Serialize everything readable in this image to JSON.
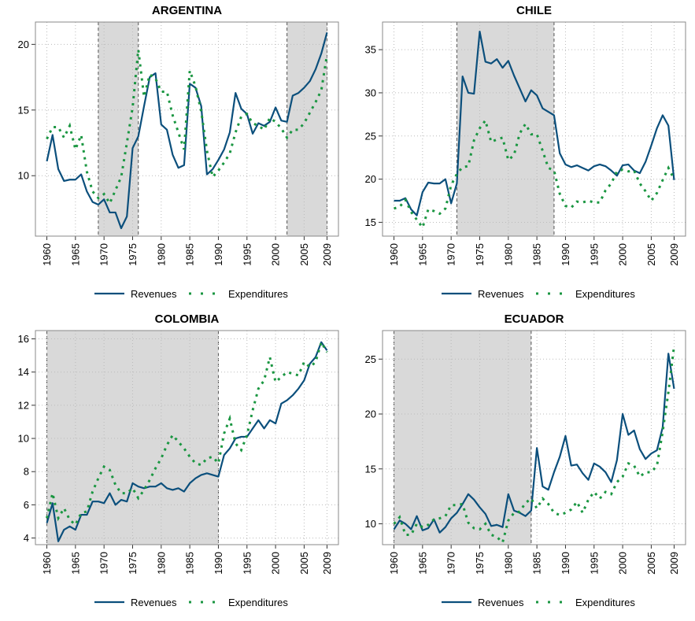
{
  "chart_data": [
    {
      "type": "line",
      "title": "ARGENTINA",
      "x": [
        1960,
        1961,
        1962,
        1963,
        1964,
        1965,
        1966,
        1967,
        1968,
        1969,
        1970,
        1971,
        1972,
        1973,
        1974,
        1975,
        1976,
        1977,
        1978,
        1979,
        1980,
        1981,
        1982,
        1983,
        1984,
        1985,
        1986,
        1987,
        1988,
        1989,
        1990,
        1991,
        1992,
        1993,
        1994,
        1995,
        1996,
        1997,
        1998,
        1999,
        2000,
        2001,
        2002,
        2003,
        2004,
        2005,
        2006,
        2007,
        2008,
        2009
      ],
      "xlim": [
        1958,
        2011
      ],
      "xticks": [
        1960,
        1965,
        1970,
        1975,
        1980,
        1985,
        1990,
        1995,
        2000,
        2005,
        2009
      ],
      "ylim": [
        5.4,
        21.7
      ],
      "yticks": [
        10,
        15,
        20
      ],
      "grid": true,
      "legend": "bottom",
      "shaded": [
        [
          1969,
          1976
        ],
        [
          2002,
          2009
        ]
      ],
      "series": [
        {
          "name": "Revenues",
          "color": "#0b4f7c",
          "style": "solid",
          "values": [
            11.1,
            13.1,
            10.5,
            9.6,
            9.7,
            9.7,
            10.1,
            8.8,
            8.0,
            7.8,
            8.2,
            7.2,
            7.2,
            6.0,
            6.9,
            12.1,
            13.0,
            15.3,
            17.5,
            17.8,
            13.9,
            13.5,
            11.6,
            10.6,
            10.8,
            17.0,
            16.7,
            15.3,
            10.1,
            10.5,
            11.2,
            12.0,
            13.3,
            16.3,
            15.1,
            14.7,
            13.2,
            14.0,
            13.8,
            14.1,
            15.2,
            14.2,
            14.1,
            16.1,
            16.3,
            16.7,
            17.2,
            18.1,
            19.3,
            20.9
          ]
        },
        {
          "name": "Expenditures",
          "color": "#1a9641",
          "style": "dotted",
          "values": [
            12.8,
            13.7,
            13.7,
            12.9,
            13.8,
            12.0,
            13.1,
            10.3,
            8.8,
            8.3,
            8.6,
            7.9,
            8.9,
            9.9,
            12.5,
            15.2,
            19.6,
            16.0,
            17.7,
            17.4,
            16.4,
            16.4,
            14.6,
            13.3,
            12.0,
            18.0,
            16.8,
            14.9,
            11.9,
            9.9,
            10.4,
            11.0,
            11.7,
            13.3,
            14.5,
            14.7,
            14.0,
            13.8,
            13.5,
            14.4,
            14.1,
            13.6,
            12.9,
            13.5,
            13.5,
            14.0,
            14.8,
            15.6,
            16.5,
            19.2
          ]
        }
      ]
    },
    {
      "type": "line",
      "title": "CHILE",
      "x": [
        1960,
        1961,
        1962,
        1963,
        1964,
        1965,
        1966,
        1967,
        1968,
        1969,
        1970,
        1971,
        1972,
        1973,
        1974,
        1975,
        1976,
        1977,
        1978,
        1979,
        1980,
        1981,
        1982,
        1983,
        1984,
        1985,
        1986,
        1987,
        1988,
        1989,
        1990,
        1991,
        1992,
        1993,
        1994,
        1995,
        1996,
        1997,
        1998,
        1999,
        2000,
        2001,
        2002,
        2003,
        2004,
        2005,
        2006,
        2007,
        2008,
        2009
      ],
      "xlim": [
        1958,
        2011
      ],
      "xticks": [
        1960,
        1965,
        1970,
        1975,
        1980,
        1985,
        1990,
        1995,
        2000,
        2005,
        2009
      ],
      "ylim": [
        13.4,
        38.2
      ],
      "yticks": [
        15,
        20,
        25,
        30,
        35
      ],
      "grid": true,
      "legend": "bottom",
      "shaded": [
        [
          1971,
          1988
        ]
      ],
      "series": [
        {
          "name": "Revenues",
          "color": "#0b4f7c",
          "style": "solid",
          "values": [
            17.5,
            17.5,
            17.8,
            16.5,
            15.8,
            18.5,
            19.6,
            19.5,
            19.5,
            20.0,
            17.2,
            19.5,
            31.9,
            30.0,
            29.9,
            37.1,
            33.6,
            33.4,
            33.9,
            32.9,
            33.7,
            32.0,
            30.5,
            29.0,
            30.3,
            29.7,
            28.2,
            27.8,
            27.4,
            23.0,
            21.7,
            21.4,
            21.6,
            21.3,
            21.0,
            21.5,
            21.7,
            21.5,
            21.0,
            20.4,
            21.6,
            21.7,
            21.0,
            20.7,
            22.0,
            23.9,
            25.9,
            27.4,
            26.2,
            19.9
          ]
        },
        {
          "name": "Expenditures",
          "color": "#1a9641",
          "style": "dotted",
          "values": [
            16.6,
            16.8,
            17.6,
            16.2,
            15.3,
            14.4,
            16.5,
            16.3,
            16.0,
            16.6,
            19.3,
            20.6,
            21.4,
            21.5,
            24.5,
            25.9,
            26.8,
            24.3,
            24.6,
            24.8,
            22.2,
            22.8,
            25.3,
            26.4,
            25.2,
            25.2,
            23.3,
            21.3,
            21.0,
            18.3,
            16.9,
            16.7,
            17.4,
            17.3,
            17.5,
            17.3,
            17.3,
            18.7,
            19.5,
            20.9,
            21.1,
            20.9,
            21.0,
            19.5,
            18.6,
            17.5,
            18.4,
            19.9,
            21.3,
            20.0
          ]
        }
      ]
    },
    {
      "type": "line",
      "title": "COLOMBIA",
      "x": [
        1960,
        1961,
        1962,
        1963,
        1964,
        1965,
        1966,
        1967,
        1968,
        1969,
        1970,
        1971,
        1972,
        1973,
        1974,
        1975,
        1976,
        1977,
        1978,
        1979,
        1980,
        1981,
        1982,
        1983,
        1984,
        1985,
        1986,
        1987,
        1988,
        1989,
        1990,
        1991,
        1992,
        1993,
        1994,
        1995,
        1996,
        1997,
        1998,
        1999,
        2000,
        2001,
        2002,
        2003,
        2004,
        2005,
        2006,
        2007,
        2008,
        2009
      ],
      "xlim": [
        1958,
        2011
      ],
      "xticks": [
        1960,
        1965,
        1970,
        1975,
        1980,
        1985,
        1990,
        1995,
        2000,
        2005,
        2009
      ],
      "ylim": [
        3.6,
        16.5
      ],
      "yticks": [
        4,
        6,
        8,
        10,
        12,
        14,
        16
      ],
      "grid": true,
      "legend": "bottom",
      "shaded": [
        [
          1960,
          1990
        ]
      ],
      "series": [
        {
          "name": "Revenues",
          "color": "#0b4f7c",
          "style": "solid",
          "values": [
            4.9,
            6.1,
            3.8,
            4.5,
            4.7,
            4.5,
            5.4,
            5.4,
            6.2,
            6.2,
            6.1,
            6.7,
            6.0,
            6.3,
            6.2,
            7.3,
            7.1,
            7.0,
            7.1,
            7.1,
            7.3,
            7.0,
            6.9,
            7.0,
            6.8,
            7.3,
            7.6,
            7.8,
            7.9,
            7.8,
            7.7,
            9.0,
            9.4,
            10.0,
            10.1,
            10.1,
            10.6,
            11.1,
            10.6,
            11.1,
            10.9,
            12.1,
            12.3,
            12.6,
            13.0,
            13.5,
            14.5,
            14.9,
            15.8,
            15.3
          ]
        },
        {
          "name": "Expenditures",
          "color": "#1a9641",
          "style": "dotted",
          "values": [
            5.2,
            6.7,
            5.2,
            5.8,
            5.1,
            4.8,
            5.5,
            5.6,
            6.8,
            7.6,
            8.3,
            8.1,
            7.2,
            6.7,
            6.7,
            7.0,
            6.4,
            6.9,
            7.5,
            8.2,
            8.8,
            9.6,
            10.2,
            9.8,
            9.4,
            8.9,
            8.5,
            8.4,
            8.8,
            8.9,
            8.5,
            10.3,
            11.2,
            9.7,
            9.3,
            10.2,
            11.7,
            13.0,
            13.5,
            14.9,
            13.4,
            13.7,
            14.0,
            13.9,
            13.8,
            14.6,
            14.3,
            14.6,
            15.8,
            15.2
          ]
        }
      ]
    },
    {
      "type": "line",
      "title": "ECUADOR",
      "x": [
        1960,
        1961,
        1962,
        1963,
        1964,
        1965,
        1966,
        1967,
        1968,
        1969,
        1970,
        1971,
        1972,
        1973,
        1974,
        1975,
        1976,
        1977,
        1978,
        1979,
        1980,
        1981,
        1982,
        1983,
        1984,
        1985,
        1986,
        1987,
        1988,
        1989,
        1990,
        1991,
        1992,
        1993,
        1994,
        1995,
        1996,
        1997,
        1998,
        1999,
        2000,
        2001,
        2002,
        2003,
        2004,
        2005,
        2006,
        2007,
        2008,
        2009
      ],
      "xlim": [
        1958,
        2011
      ],
      "xticks": [
        1960,
        1965,
        1970,
        1975,
        1980,
        1985,
        1990,
        1995,
        2000,
        2005,
        2009
      ],
      "ylim": [
        8.1,
        27.6
      ],
      "yticks": [
        10,
        15,
        20,
        25
      ],
      "grid": true,
      "legend": "bottom",
      "shaded": [
        [
          1960,
          1984
        ]
      ],
      "series": [
        {
          "name": "Revenues",
          "color": "#0b4f7c",
          "style": "solid",
          "values": [
            9.5,
            10.3,
            10.0,
            9.5,
            10.7,
            9.4,
            9.6,
            10.4,
            9.2,
            9.7,
            10.5,
            11.0,
            11.8,
            12.7,
            12.2,
            11.5,
            10.9,
            9.8,
            9.9,
            9.7,
            12.7,
            11.2,
            11.0,
            10.7,
            11.2,
            16.9,
            13.4,
            13.1,
            14.7,
            16.1,
            18.0,
            15.3,
            15.4,
            14.6,
            14.0,
            15.5,
            15.2,
            14.7,
            13.8,
            15.8,
            20.0,
            18.1,
            18.5,
            16.8,
            15.9,
            16.4,
            16.7,
            18.8,
            25.5,
            22.3
          ]
        },
        {
          "name": "Expenditures",
          "color": "#1a9641",
          "style": "dotted",
          "values": [
            10.0,
            10.6,
            9.0,
            9.0,
            10.0,
            9.7,
            9.9,
            10.4,
            10.5,
            10.7,
            11.7,
            11.7,
            11.8,
            10.1,
            9.6,
            9.5,
            10.0,
            9.0,
            8.8,
            8.3,
            10.3,
            11.0,
            11.1,
            11.9,
            12.3,
            11.4,
            12.3,
            11.8,
            11.0,
            10.8,
            11.0,
            11.3,
            12.0,
            11.0,
            12.2,
            12.9,
            12.3,
            12.9,
            12.7,
            13.8,
            14.3,
            15.5,
            15.3,
            14.3,
            14.7,
            14.7,
            15.3,
            18.4,
            22.0,
            26.2
          ]
        }
      ]
    }
  ]
}
